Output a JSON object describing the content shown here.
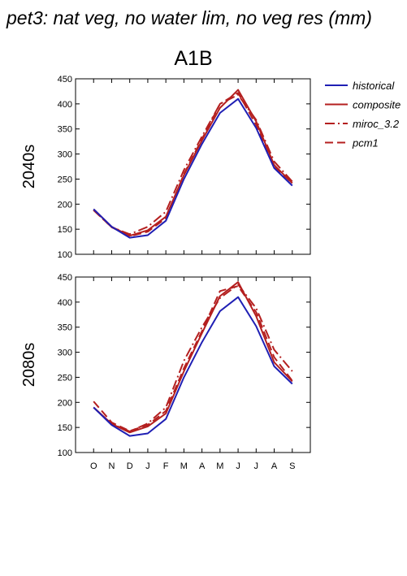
{
  "figure": {
    "title": "pet3: nat veg, no water lim, no veg res (mm)",
    "subtitle": "A1B"
  },
  "colors": {
    "historical": "#1f1fb4",
    "model": "#b41f1f"
  },
  "legend": {
    "placement": "top-right, outside plot",
    "entries": [
      {
        "key": "historical",
        "label": "historical",
        "dash": "solid",
        "color": "#1f1fb4"
      },
      {
        "key": "composite",
        "label": "composite",
        "dash": "solid",
        "color": "#b41f1f"
      },
      {
        "key": "miroc_3.2",
        "label": "miroc_3.2",
        "dash": "dashdot",
        "color": "#b41f1f"
      },
      {
        "key": "pcm1",
        "label": "pcm1",
        "dash": "dashed",
        "color": "#b41f1f"
      }
    ]
  },
  "chart_data": [
    {
      "type": "line",
      "title": "",
      "row_label": "2040s",
      "xlabel": "",
      "ylabel": "",
      "categories": [
        "O",
        "N",
        "D",
        "J",
        "F",
        "M",
        "A",
        "M",
        "J",
        "J",
        "A",
        "S"
      ],
      "ylim": [
        100,
        450
      ],
      "yticks": [
        100,
        150,
        200,
        250,
        300,
        350,
        400,
        450
      ],
      "grid": false,
      "series": [
        {
          "name": "historical",
          "values": [
            190,
            155,
            133,
            138,
            167,
            250,
            320,
            382,
            410,
            352,
            272,
            237
          ]
        },
        {
          "name": "composite",
          "values": [
            190,
            155,
            137,
            148,
            175,
            258,
            327,
            392,
            428,
            365,
            278,
            242
          ]
        },
        {
          "name": "miroc_3.2",
          "values": [
            188,
            154,
            140,
            155,
            185,
            268,
            335,
            400,
            418,
            368,
            285,
            245
          ]
        },
        {
          "name": "pcm1",
          "values": [
            188,
            154,
            136,
            145,
            172,
            260,
            330,
            400,
            422,
            358,
            275,
            242
          ]
        }
      ]
    },
    {
      "type": "line",
      "title": "",
      "row_label": "2080s",
      "xlabel": "",
      "ylabel": "",
      "categories": [
        "O",
        "N",
        "D",
        "J",
        "F",
        "M",
        "A",
        "M",
        "J",
        "J",
        "A",
        "S"
      ],
      "ylim": [
        100,
        450
      ],
      "yticks": [
        100,
        150,
        200,
        250,
        300,
        350,
        400,
        450
      ],
      "grid": false,
      "series": [
        {
          "name": "historical",
          "values": [
            190,
            155,
            133,
            138,
            167,
            250,
            320,
            382,
            410,
            352,
            272,
            237
          ]
        },
        {
          "name": "composite",
          "values": [
            190,
            157,
            140,
            152,
            178,
            262,
            338,
            412,
            440,
            372,
            280,
            242
          ]
        },
        {
          "name": "miroc_3.2",
          "values": [
            190,
            157,
            142,
            158,
            190,
            283,
            350,
            408,
            435,
            388,
            305,
            262
          ]
        },
        {
          "name": "pcm1",
          "values": [
            202,
            160,
            143,
            155,
            183,
            268,
            342,
            422,
            432,
            380,
            290,
            243
          ]
        }
      ]
    }
  ]
}
